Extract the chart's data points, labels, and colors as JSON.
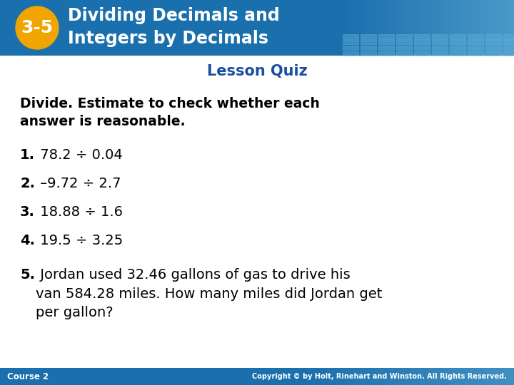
{
  "header_bg_color": "#1a6fad",
  "header_gradient_right": "#4a9fd4",
  "header_tile_color": "#5aaee0",
  "badge_color": "#f0a500",
  "badge_text": "3-5",
  "header_line1": "Dividing Decimals and",
  "header_line2": "Integers by Decimals",
  "header_text_color": "#ffffff",
  "lesson_quiz_text": "Lesson Quiz",
  "lesson_quiz_color": "#1a4fa0",
  "instruction_bold": "Divide. Estimate to check whether each\nanswer is reasonable.",
  "questions": [
    {
      "num": "1.",
      "text": " 78.2 ÷ 0.04"
    },
    {
      "num": "2.",
      "text": " –9.72 ÷ 2.7"
    },
    {
      "num": "3.",
      "text": " 18.88 ÷ 1.6"
    },
    {
      "num": "4.",
      "text": " 19.5 ÷ 3.25"
    }
  ],
  "q5_num": "5.",
  "q5_text": " Jordan used 32.46 gallons of gas to drive his\nvan 584.28 miles. How many miles did Jordan get\nper gallon?",
  "footer_bg_color": "#1a6fad",
  "footer_left": "Course 2",
  "footer_right": "Copyright © by Holt, Rinehart and Winston. All Rights Reserved.",
  "footer_text_color": "#ffffff",
  "body_bg_color": "#ffffff",
  "body_text_color": "#000000"
}
